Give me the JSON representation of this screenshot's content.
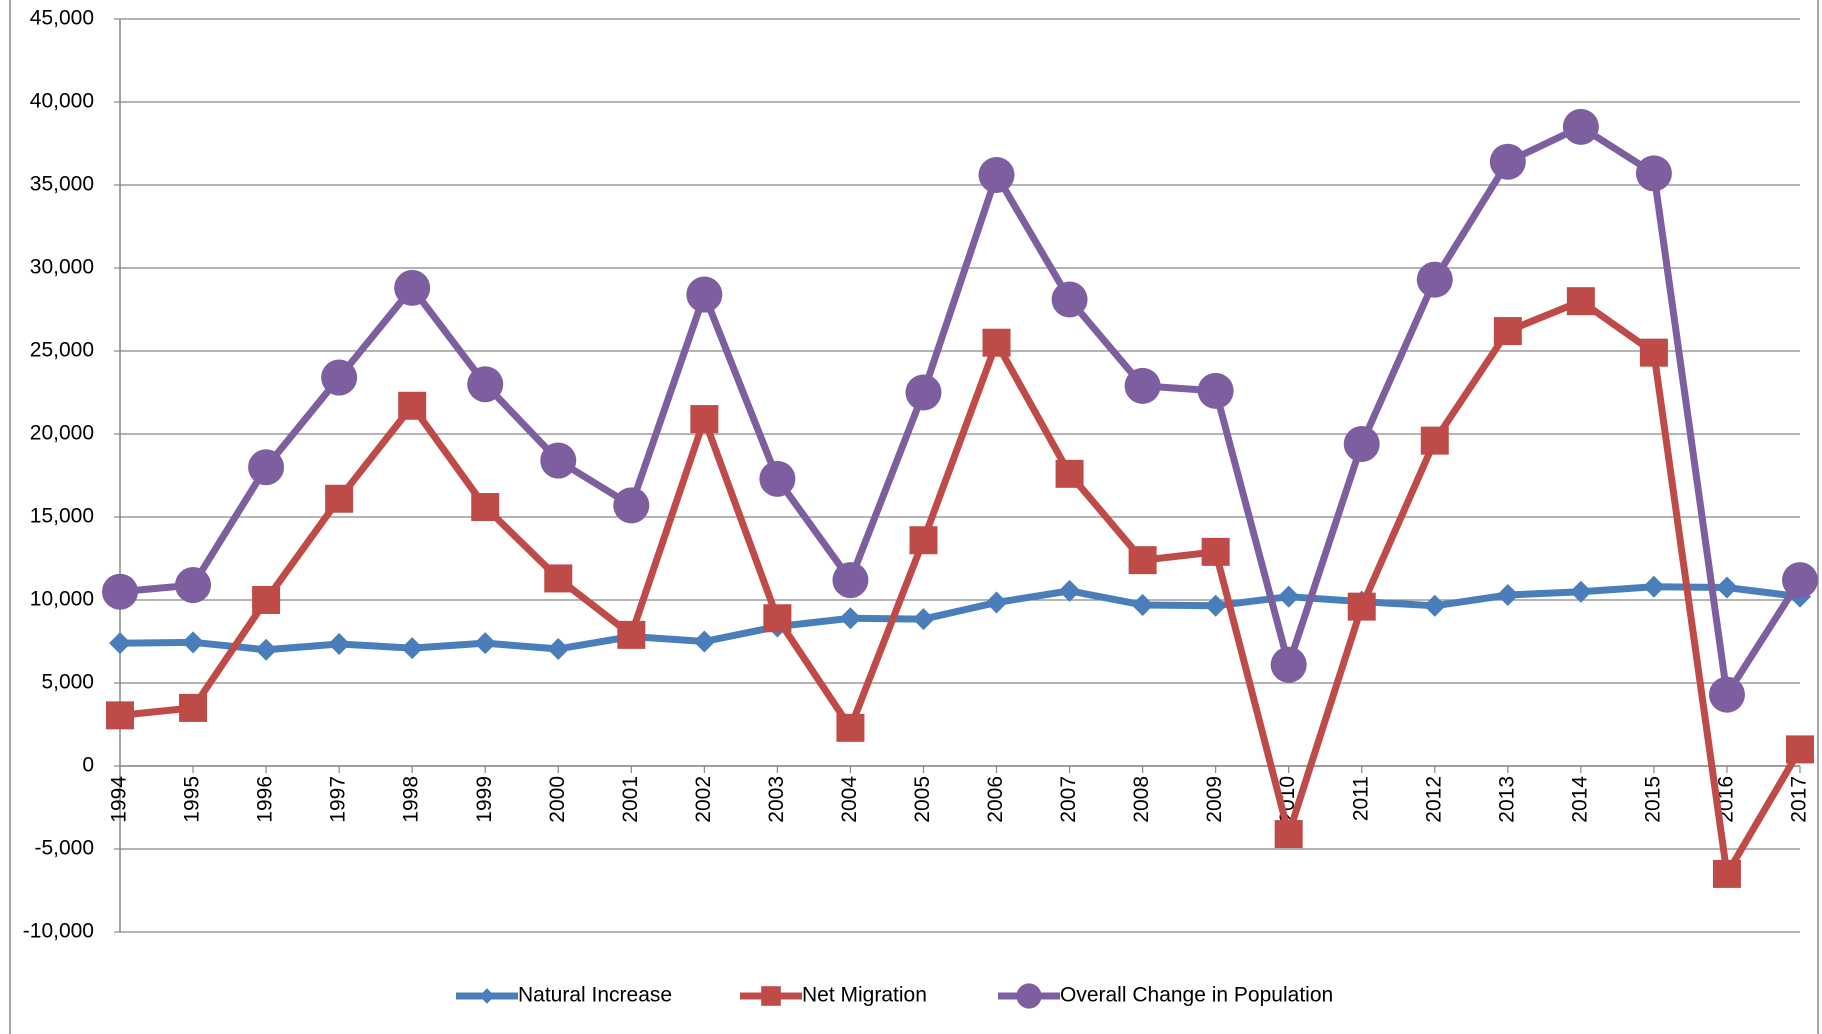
{
  "chart_data": {
    "type": "line",
    "categories": [
      "1994",
      "1995",
      "1996",
      "1997",
      "1998",
      "1999",
      "2000",
      "2001",
      "2002",
      "2003",
      "2004",
      "2005",
      "2006",
      "2007",
      "2008",
      "2009",
      "2010",
      "2011",
      "2012",
      "2013",
      "2014",
      "2015",
      "2016",
      "2017"
    ],
    "series": [
      {
        "name": "Natural Increase",
        "color": "#4a7ebb",
        "marker": "diamond",
        "values": [
          7400,
          7450,
          7000,
          7350,
          7100,
          7400,
          7050,
          7800,
          7500,
          8400,
          8900,
          8850,
          9850,
          10550,
          9700,
          9650,
          10200,
          9900,
          9650,
          10300,
          10500,
          10800,
          10750,
          10200
        ]
      },
      {
        "name": "Net Migration",
        "color": "#be4b48",
        "marker": "square",
        "values": [
          3050,
          3500,
          10000,
          16100,
          21700,
          15600,
          11300,
          7900,
          20900,
          8900,
          2300,
          13600,
          25500,
          17600,
          12400,
          12900,
          -4100,
          9600,
          19600,
          26200,
          28000,
          24900,
          -6500,
          1000
        ]
      },
      {
        "name": "Overall Change in Population",
        "color": "#7d5fa0",
        "marker": "circle",
        "values": [
          10500,
          10900,
          18000,
          23400,
          28800,
          23000,
          18400,
          15700,
          28400,
          17300,
          11200,
          22500,
          35600,
          28100,
          22900,
          22600,
          6100,
          19400,
          29300,
          36400,
          38500,
          35700,
          4300,
          11200
        ]
      }
    ],
    "ylim": [
      -10000,
      45000
    ],
    "yticks": [
      {
        "value": -10000,
        "label": "-10,000"
      },
      {
        "value": -5000,
        "label": "-5,000"
      },
      0,
      {
        "value": 5000,
        "label": "5,000"
      },
      {
        "value": 10000,
        "label": "10,000"
      },
      {
        "value": 15000,
        "label": "15,000"
      },
      {
        "value": 20000,
        "label": "20,000"
      },
      {
        "value": 25000,
        "label": "25,000"
      },
      {
        "value": 30000,
        "label": "30,000"
      },
      {
        "value": 35000,
        "label": "35,000"
      },
      {
        "value": 40000,
        "label": "40,000"
      },
      {
        "value": 45000,
        "label": "45,000"
      }
    ],
    "grid": true,
    "legend": "bottom"
  }
}
